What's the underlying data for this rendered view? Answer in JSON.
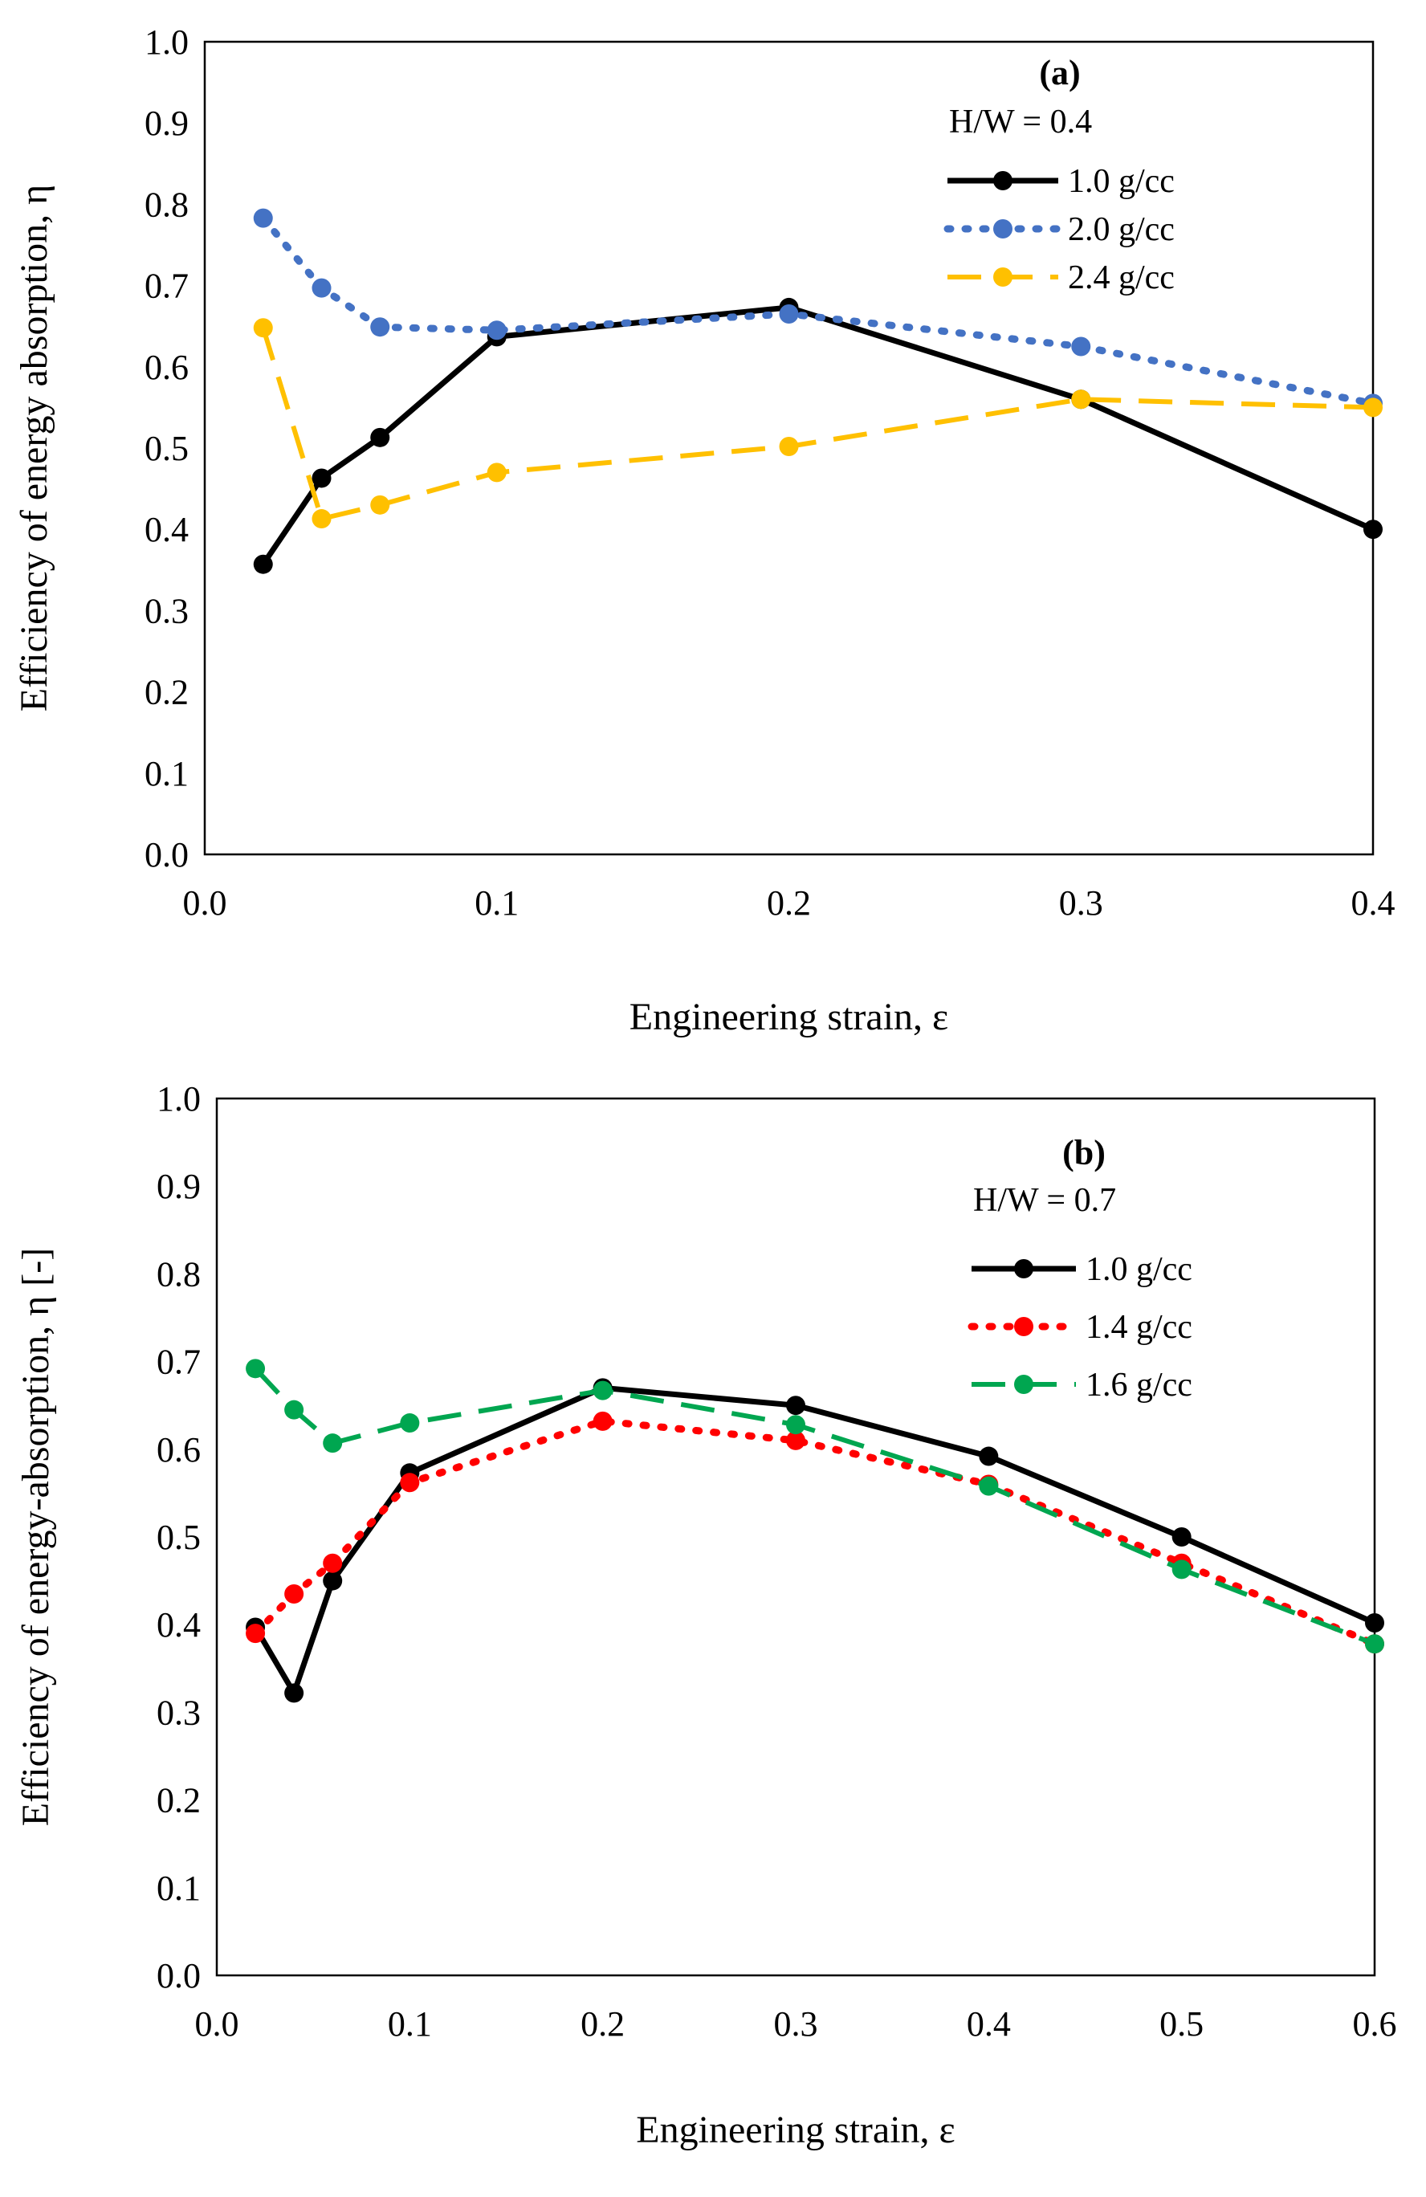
{
  "chart_data": [
    {
      "type": "line",
      "panel_label": "(a)",
      "subtitle": "H/W = 0.4",
      "xlabel": "Engineering strain, ε",
      "ylabel": "Efficiency of energy absorption, η",
      "xlim": [
        0.0,
        0.4
      ],
      "ylim": [
        0.0,
        1.0
      ],
      "xticks": [
        "0.0",
        "0.1",
        "0.2",
        "0.3",
        "0.4"
      ],
      "yticks": [
        "0.0",
        "0.1",
        "0.2",
        "0.3",
        "0.4",
        "0.5",
        "0.6",
        "0.7",
        "0.8",
        "0.9",
        "1.0"
      ],
      "legend_position": "top-right",
      "series": [
        {
          "name": "1.0 g/cc",
          "color": "#000000",
          "style": "solid",
          "x": [
            0.02,
            0.04,
            0.06,
            0.1,
            0.2,
            0.3,
            0.4
          ],
          "y": [
            0.357,
            0.463,
            0.513,
            0.637,
            0.673,
            0.56,
            0.4
          ]
        },
        {
          "name": "2.0 g/cc",
          "color": "#4472C4",
          "style": "dotted",
          "x": [
            0.02,
            0.04,
            0.06,
            0.1,
            0.2,
            0.3,
            0.4
          ],
          "y": [
            0.783,
            0.697,
            0.649,
            0.645,
            0.665,
            0.625,
            0.555
          ]
        },
        {
          "name": "2.4 g/cc",
          "color": "#FFC000",
          "style": "dashed",
          "x": [
            0.02,
            0.04,
            0.06,
            0.1,
            0.2,
            0.3,
            0.4
          ],
          "y": [
            0.648,
            0.413,
            0.43,
            0.47,
            0.502,
            0.56,
            0.55
          ]
        }
      ]
    },
    {
      "type": "line",
      "panel_label": "(b)",
      "subtitle": "H/W = 0.7",
      "xlabel": "Engineering strain, ε",
      "ylabel": "Efficiency of energy-absorption, η [-]",
      "xlim": [
        0.0,
        0.6
      ],
      "ylim": [
        0.0,
        1.0
      ],
      "xticks": [
        "0.0",
        "0.1",
        "0.2",
        "0.3",
        "0.4",
        "0.5",
        "0.6"
      ],
      "yticks": [
        "0.0",
        "0.1",
        "0.2",
        "0.3",
        "0.4",
        "0.5",
        "0.6",
        "0.7",
        "0.8",
        "0.9",
        "1.0"
      ],
      "legend_position": "top-right",
      "series": [
        {
          "name": "1.0 g/cc",
          "color": "#000000",
          "style": "solid",
          "x": [
            0.02,
            0.04,
            0.06,
            0.1,
            0.2,
            0.3,
            0.4,
            0.5,
            0.6
          ],
          "y": [
            0.397,
            0.322,
            0.45,
            0.573,
            0.67,
            0.65,
            0.592,
            0.5,
            0.402
          ]
        },
        {
          "name": "1.4 g/cc",
          "color": "#FF0000",
          "style": "dotted",
          "x": [
            0.02,
            0.04,
            0.06,
            0.1,
            0.2,
            0.3,
            0.4,
            0.5,
            0.6
          ],
          "y": [
            0.39,
            0.435,
            0.47,
            0.562,
            0.632,
            0.61,
            0.56,
            0.47,
            0.378
          ]
        },
        {
          "name": "1.6 g/cc",
          "color": "#00A650",
          "style": "dashed",
          "x": [
            0.02,
            0.04,
            0.06,
            0.1,
            0.2,
            0.3,
            0.4,
            0.5,
            0.6
          ],
          "y": [
            0.692,
            0.645,
            0.607,
            0.63,
            0.667,
            0.628,
            0.558,
            0.463,
            0.378
          ]
        }
      ]
    }
  ]
}
